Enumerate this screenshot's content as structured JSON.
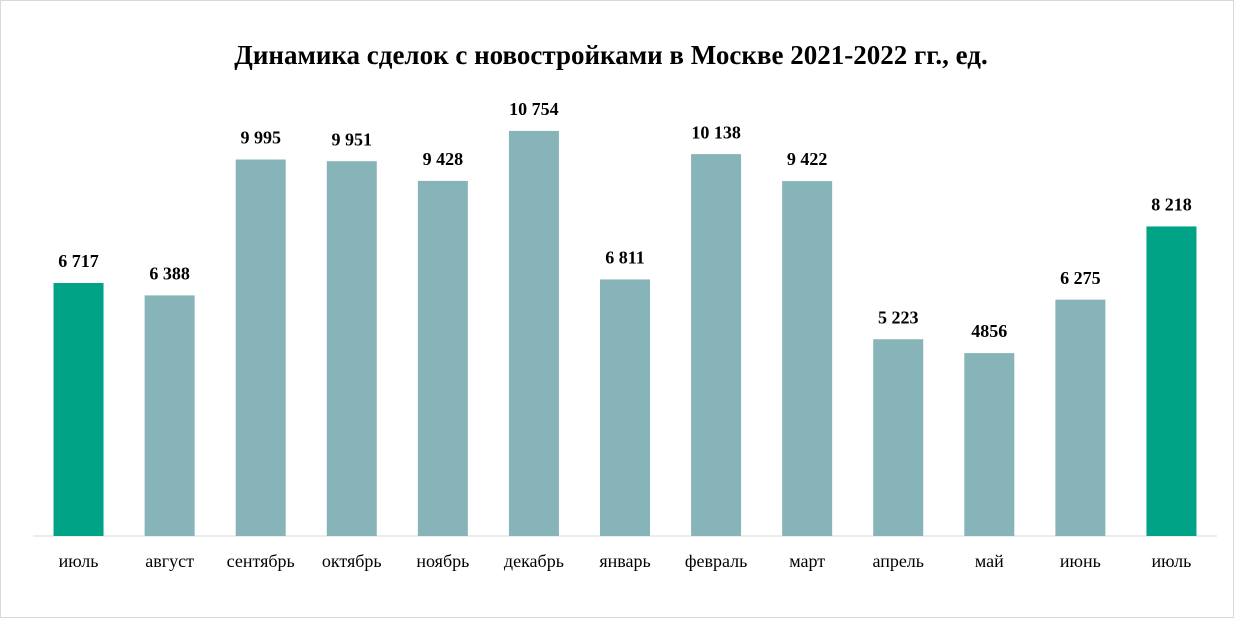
{
  "chart_data": {
    "type": "bar",
    "title": "Динамика сделок с новостройками в Москве 2021-2022 гг., ед.",
    "categories": [
      "июль",
      "август",
      "сентябрь",
      "октябрь",
      "ноябрь",
      "декабрь",
      "январь",
      "февраль",
      "март",
      "апрель",
      "май",
      "июнь",
      "июль"
    ],
    "values": [
      6717,
      6388,
      9995,
      9951,
      9428,
      10754,
      6811,
      10138,
      9422,
      5223,
      4856,
      6275,
      8218
    ],
    "value_labels": [
      "6 717",
      "6 388",
      "9 995",
      "9 951",
      "9 428",
      "10 754",
      "6 811",
      "10 138",
      "9 422",
      "5 223",
      "4856",
      "6 275",
      "8 218"
    ],
    "colors": [
      "#00a385",
      "#86b4b8",
      "#86b4b8",
      "#86b4b8",
      "#86b4b8",
      "#86b4b8",
      "#86b4b8",
      "#86b4b8",
      "#86b4b8",
      "#86b4b8",
      "#86b4b8",
      "#86b4b8",
      "#00a385"
    ],
    "ylim": [
      0,
      12000
    ]
  }
}
